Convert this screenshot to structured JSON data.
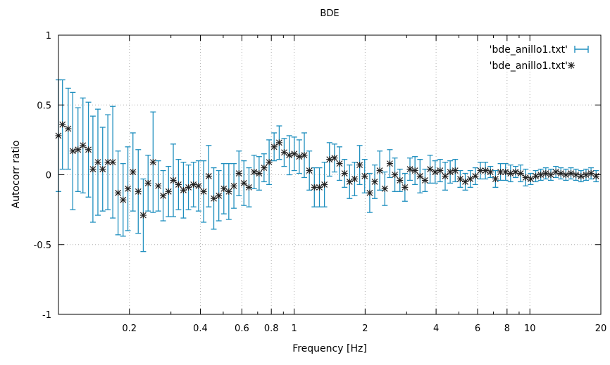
{
  "chart_data": {
    "type": "scatter",
    "title": "BDE",
    "xlabel": "Frequency [Hz]",
    "ylabel": "Autocorr ratio",
    "x_scale": "log",
    "xlim": [
      0.1,
      20
    ],
    "ylim": [
      -1,
      1
    ],
    "x_ticks": [
      0.2,
      0.4,
      0.6,
      0.8,
      1,
      2,
      4,
      6,
      8,
      10,
      20
    ],
    "x_tick_labels": [
      "0.2",
      "0.4",
      "0.6",
      "0.8",
      "1",
      "2",
      "4",
      "6",
      "8",
      "10",
      "20"
    ],
    "y_ticks": [
      -1,
      -0.5,
      0,
      0.5,
      1
    ],
    "y_tick_labels": [
      "-1",
      "-0.5",
      "0",
      "0.5",
      "1"
    ],
    "grid": true,
    "legend_position": "top-right",
    "colors": {
      "errorbar": "#1f8fbf",
      "point": "#222222"
    },
    "series": [
      {
        "name": "'bde_anillo1.txt'",
        "style": "errorbars"
      },
      {
        "name": "'bde_anillo1.txt'",
        "style": "points"
      }
    ],
    "points": [
      [
        0.1,
        0.28,
        0.4
      ],
      [
        0.104,
        0.36,
        0.32
      ],
      [
        0.11,
        0.33,
        0.29
      ],
      [
        0.115,
        0.17,
        0.42
      ],
      [
        0.121,
        0.18,
        0.3
      ],
      [
        0.127,
        0.21,
        0.34
      ],
      [
        0.134,
        0.18,
        0.34
      ],
      [
        0.14,
        0.04,
        0.38
      ],
      [
        0.147,
        0.09,
        0.38
      ],
      [
        0.154,
        0.04,
        0.3
      ],
      [
        0.162,
        0.09,
        0.34
      ],
      [
        0.17,
        0.09,
        0.4
      ],
      [
        0.179,
        -0.13,
        0.3
      ],
      [
        0.188,
        -0.18,
        0.26
      ],
      [
        0.197,
        -0.1,
        0.3
      ],
      [
        0.207,
        0.02,
        0.28
      ],
      [
        0.218,
        -0.12,
        0.3
      ],
      [
        0.229,
        -0.29,
        0.26
      ],
      [
        0.24,
        -0.06,
        0.2
      ],
      [
        0.252,
        0.09,
        0.36
      ],
      [
        0.265,
        -0.08,
        0.18
      ],
      [
        0.278,
        -0.15,
        0.18
      ],
      [
        0.293,
        -0.12,
        0.18
      ],
      [
        0.307,
        -0.04,
        0.26
      ],
      [
        0.323,
        -0.07,
        0.18
      ],
      [
        0.339,
        -0.11,
        0.2
      ],
      [
        0.356,
        -0.09,
        0.16
      ],
      [
        0.374,
        -0.07,
        0.16
      ],
      [
        0.393,
        -0.08,
        0.18
      ],
      [
        0.413,
        -0.12,
        0.22
      ],
      [
        0.434,
        -0.01,
        0.22
      ],
      [
        0.456,
        -0.17,
        0.22
      ],
      [
        0.479,
        -0.15,
        0.18
      ],
      [
        0.503,
        -0.1,
        0.18
      ],
      [
        0.528,
        -0.12,
        0.2
      ],
      [
        0.555,
        -0.08,
        0.16
      ],
      [
        0.583,
        0.01,
        0.16
      ],
      [
        0.612,
        -0.06,
        0.16
      ],
      [
        0.643,
        -0.09,
        0.14
      ],
      [
        0.676,
        0.02,
        0.12
      ],
      [
        0.71,
        0.01,
        0.12
      ],
      [
        0.745,
        0.05,
        0.1
      ],
      [
        0.783,
        0.09,
        0.16
      ],
      [
        0.822,
        0.2,
        0.1
      ],
      [
        0.864,
        0.23,
        0.12
      ],
      [
        0.907,
        0.16,
        0.1
      ],
      [
        0.953,
        0.14,
        0.14
      ],
      [
        1.001,
        0.15,
        0.12
      ],
      [
        1.051,
        0.13,
        0.12
      ],
      [
        1.104,
        0.14,
        0.16
      ],
      [
        1.16,
        0.03,
        0.14
      ],
      [
        1.218,
        -0.09,
        0.14
      ],
      [
        1.28,
        -0.09,
        0.14
      ],
      [
        1.344,
        -0.07,
        0.16
      ],
      [
        1.412,
        0.11,
        0.12
      ],
      [
        1.483,
        0.12,
        0.1
      ],
      [
        1.557,
        0.08,
        0.12
      ],
      [
        1.636,
        0.01,
        0.1
      ],
      [
        1.718,
        -0.05,
        0.12
      ],
      [
        1.805,
        -0.03,
        0.12
      ],
      [
        1.896,
        0.07,
        0.14
      ],
      [
        1.991,
        -0.01,
        0.12
      ],
      [
        2.092,
        -0.13,
        0.14
      ],
      [
        2.197,
        -0.05,
        0.12
      ],
      [
        2.307,
        0.03,
        0.14
      ],
      [
        2.424,
        -0.1,
        0.12
      ],
      [
        2.546,
        0.08,
        0.1
      ],
      [
        2.674,
        0.0,
        0.12
      ],
      [
        2.809,
        -0.04,
        0.08
      ],
      [
        2.95,
        -0.09,
        0.1
      ],
      [
        3.099,
        0.04,
        0.08
      ],
      [
        3.255,
        0.03,
        0.1
      ],
      [
        3.419,
        -0.01,
        0.12
      ],
      [
        3.591,
        -0.04,
        0.08
      ],
      [
        3.772,
        0.04,
        0.1
      ],
      [
        3.962,
        0.02,
        0.08
      ],
      [
        4.161,
        0.03,
        0.08
      ],
      [
        4.371,
        -0.01,
        0.1
      ],
      [
        4.591,
        0.02,
        0.08
      ],
      [
        4.822,
        0.03,
        0.08
      ],
      [
        5.065,
        -0.03,
        0.06
      ],
      [
        5.32,
        -0.05,
        0.06
      ],
      [
        5.588,
        -0.03,
        0.06
      ],
      [
        5.87,
        -0.01,
        0.06
      ],
      [
        6.165,
        0.03,
        0.06
      ],
      [
        6.476,
        0.03,
        0.06
      ],
      [
        6.802,
        0.02,
        0.04
      ],
      [
        7.145,
        -0.03,
        0.06
      ],
      [
        7.505,
        0.02,
        0.06
      ],
      [
        7.883,
        0.02,
        0.06
      ],
      [
        8.28,
        0.01,
        0.06
      ],
      [
        8.697,
        0.02,
        0.04
      ],
      [
        9.135,
        0.01,
        0.06
      ],
      [
        9.595,
        -0.02,
        0.06
      ],
      [
        10.078,
        -0.03,
        0.04
      ],
      [
        10.586,
        -0.01,
        0.04
      ],
      [
        11.119,
        0.0,
        0.04
      ],
      [
        11.679,
        0.01,
        0.04
      ],
      [
        12.268,
        0.0,
        0.04
      ],
      [
        12.886,
        0.02,
        0.04
      ],
      [
        13.535,
        0.01,
        0.04
      ],
      [
        14.216,
        0.0,
        0.04
      ],
      [
        14.932,
        0.01,
        0.04
      ],
      [
        15.685,
        0.0,
        0.04
      ],
      [
        16.475,
        -0.01,
        0.04
      ],
      [
        17.305,
        0.0,
        0.04
      ],
      [
        18.176,
        0.01,
        0.04
      ],
      [
        19.092,
        -0.01,
        0.04
      ]
    ]
  }
}
